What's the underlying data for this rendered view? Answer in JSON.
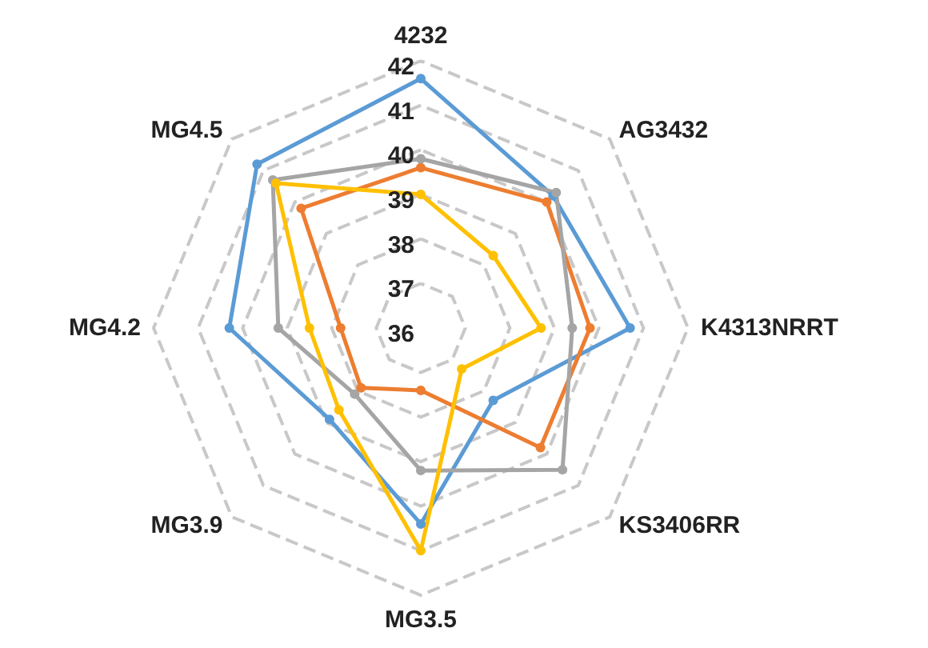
{
  "chart_data": {
    "type": "radar",
    "categories": [
      "4232",
      "AG3432",
      "K4313NRRT",
      "KS3406RR",
      "MG3.5",
      "MG3.9",
      "MG4.2",
      "MG4.5"
    ],
    "ylim": [
      36,
      42
    ],
    "yticks": [
      36,
      37,
      38,
      39,
      40,
      41,
      42
    ],
    "grid": true,
    "marker": "circle",
    "series": [
      {
        "color": "#5b9bd5",
        "values": [
          41.6,
          40.2,
          40.7,
          38.3,
          40.4,
          38.9,
          40.3,
          41.2
        ]
      },
      {
        "color": "#ed7d31",
        "values": [
          39.6,
          40.0,
          39.8,
          39.8,
          37.4,
          37.9,
          37.8,
          39.8
        ]
      },
      {
        "color": "#a5a5a5",
        "values": [
          39.8,
          40.3,
          39.4,
          40.5,
          39.2,
          38.1,
          39.2,
          40.7
        ]
      },
      {
        "color": "#ffc000",
        "values": [
          39.0,
          38.3,
          38.7,
          37.3,
          41.0,
          38.6,
          38.5,
          40.6
        ]
      }
    ]
  }
}
